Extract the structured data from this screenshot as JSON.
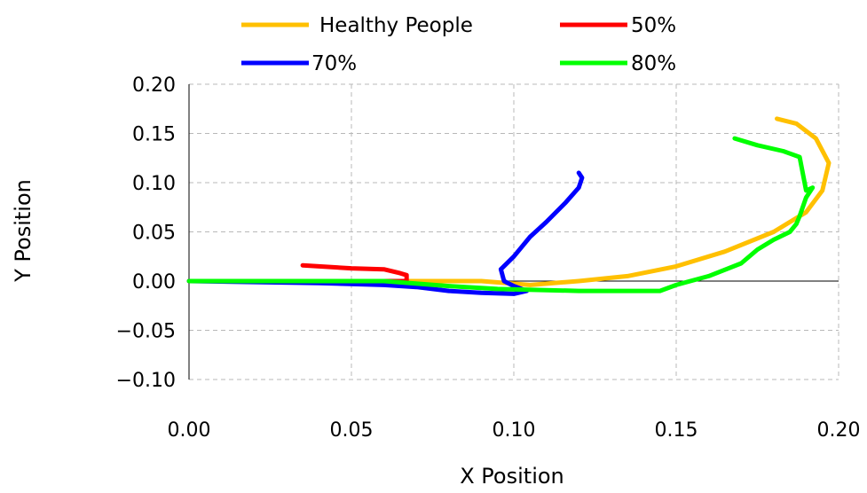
{
  "chart_data": {
    "type": "line",
    "xlabel": "X Position",
    "ylabel": "Y Position",
    "xlim": [
      0.0,
      0.2
    ],
    "ylim": [
      -0.1,
      0.2
    ],
    "x_ticks": [
      "0.00",
      "0.05",
      "0.10",
      "0.15",
      "0.20"
    ],
    "y_ticks": [
      "0.20",
      "0.15",
      "0.10",
      "0.05",
      "0.00",
      "−0.05",
      "−0.10"
    ],
    "grid": true,
    "legend_position": "top",
    "series": [
      {
        "name": "Healthy People",
        "color": "#ffc000",
        "points": [
          [
            0.0,
            0.0
          ],
          [
            0.05,
            0.0
          ],
          [
            0.09,
            0.0
          ],
          [
            0.105,
            -0.004
          ],
          [
            0.12,
            0.0
          ],
          [
            0.135,
            0.005
          ],
          [
            0.15,
            0.015
          ],
          [
            0.165,
            0.03
          ],
          [
            0.18,
            0.05
          ],
          [
            0.19,
            0.07
          ],
          [
            0.195,
            0.092
          ],
          [
            0.197,
            0.12
          ],
          [
            0.193,
            0.145
          ],
          [
            0.187,
            0.16
          ],
          [
            0.181,
            0.165
          ]
        ]
      },
      {
        "name": "50%",
        "color": "#ff0000",
        "points": [
          [
            0.0,
            0.0
          ],
          [
            0.067,
            0.0
          ],
          [
            0.067,
            0.006
          ],
          [
            0.065,
            0.008
          ],
          [
            0.06,
            0.012
          ],
          [
            0.05,
            0.013
          ],
          [
            0.04,
            0.015
          ],
          [
            0.035,
            0.016
          ]
        ]
      },
      {
        "name": "70%",
        "color": "#0000ff",
        "points": [
          [
            0.0,
            0.0
          ],
          [
            0.04,
            -0.002
          ],
          [
            0.06,
            -0.004
          ],
          [
            0.07,
            -0.006
          ],
          [
            0.08,
            -0.01
          ],
          [
            0.09,
            -0.012
          ],
          [
            0.1,
            -0.013
          ],
          [
            0.104,
            -0.01
          ],
          [
            0.1,
            -0.005
          ],
          [
            0.097,
            0.0
          ],
          [
            0.096,
            0.012
          ],
          [
            0.1,
            0.025
          ],
          [
            0.105,
            0.045
          ],
          [
            0.11,
            0.06
          ],
          [
            0.116,
            0.08
          ],
          [
            0.12,
            0.095
          ],
          [
            0.121,
            0.105
          ],
          [
            0.12,
            0.11
          ]
        ]
      },
      {
        "name": "80%",
        "color": "#00ff00",
        "points": [
          [
            0.0,
            0.0
          ],
          [
            0.06,
            0.0
          ],
          [
            0.08,
            -0.005
          ],
          [
            0.095,
            -0.008
          ],
          [
            0.12,
            -0.01
          ],
          [
            0.145,
            -0.01
          ],
          [
            0.15,
            -0.004
          ],
          [
            0.16,
            0.005
          ],
          [
            0.17,
            0.018
          ],
          [
            0.175,
            0.032
          ],
          [
            0.18,
            0.042
          ],
          [
            0.185,
            0.05
          ],
          [
            0.187,
            0.058
          ],
          [
            0.188,
            0.066
          ],
          [
            0.19,
            0.085
          ],
          [
            0.192,
            0.095
          ],
          [
            0.19,
            0.092
          ],
          [
            0.188,
            0.126
          ],
          [
            0.183,
            0.132
          ],
          [
            0.175,
            0.138
          ],
          [
            0.168,
            0.145
          ]
        ]
      }
    ]
  }
}
